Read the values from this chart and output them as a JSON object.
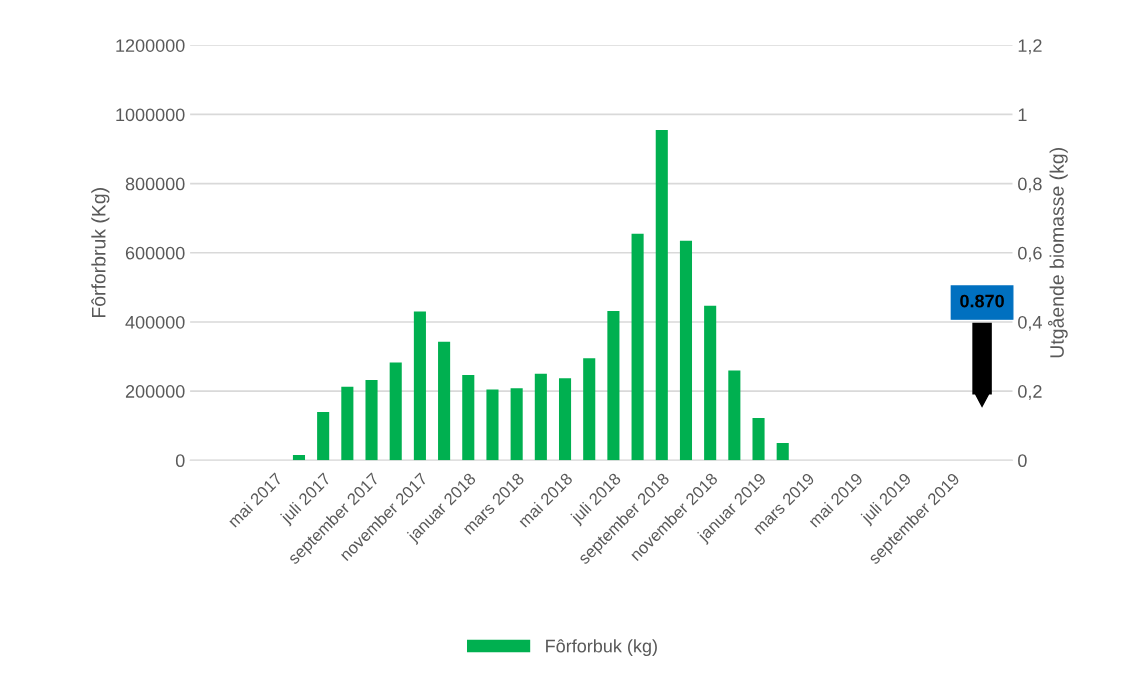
{
  "chart_data": {
    "type": "bar",
    "categories": [
      null,
      null,
      null,
      "mai 2017",
      null,
      "juli 2017",
      null,
      "september 2017",
      null,
      "november 2017",
      null,
      "januar 2018",
      null,
      "mars 2018",
      null,
      "mai 2018",
      null,
      "juli 2018",
      null,
      "september 2018",
      null,
      "november 2018",
      null,
      "januar 2019",
      null,
      "mars 2019",
      null,
      "mai 2019",
      null,
      "juli 2019",
      null,
      "september 2019",
      null,
      null
    ],
    "series": [
      {
        "name": "Fôrforbuk (kg)",
        "color": "#00b050",
        "values": [
          null,
          null,
          null,
          null,
          15000,
          140000,
          213000,
          232000,
          283000,
          430000,
          343000,
          247000,
          205000,
          208000,
          250000,
          237000,
          295000,
          432000,
          655000,
          955000,
          635000,
          447000,
          260000,
          122000,
          50000,
          null,
          null,
          null,
          null,
          null,
          null,
          null,
          null,
          null
        ]
      }
    ],
    "ylabel": "Fôrforbruk (Kg)",
    "y2label": "Utgående biomasse (kg)",
    "ylim": [
      0,
      1200000
    ],
    "yticks": [
      0,
      200000,
      400000,
      600000,
      800000,
      1000000,
      1200000
    ],
    "y2lim": [
      0,
      1.2
    ],
    "y2ticks": [
      0,
      {
        "value": 0.2,
        "label": "0,2"
      },
      {
        "value": 0.4,
        "label": "0,4"
      },
      {
        "value": 0.6,
        "label": "0,6"
      },
      {
        "value": 0.8,
        "label": "0,8"
      },
      1,
      {
        "value": 1.2,
        "label": "1,2"
      }
    ],
    "annotations": [
      "0.870"
    ],
    "grid": "y",
    "legend": "bottom"
  }
}
